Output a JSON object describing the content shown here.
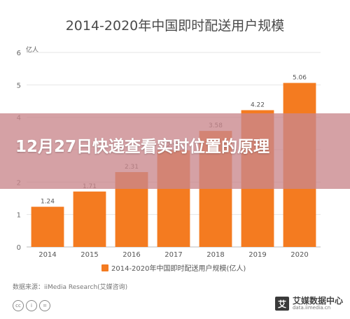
{
  "chart_data": {
    "type": "bar",
    "title": "2014-2020年中国即时配送用户规模",
    "yunit": "亿人",
    "categories": [
      "2014",
      "2015",
      "2016",
      "2017",
      "2018",
      "2019",
      "2020"
    ],
    "values": [
      1.24,
      1.71,
      2.31,
      2.98,
      3.58,
      4.22,
      5.06
    ],
    "value_labels": [
      "1.24",
      "1.71",
      "2.31",
      "2.98",
      "3.58",
      "4.22",
      "5.06"
    ],
    "yticks": [
      "0",
      "1",
      "2",
      "3",
      "4",
      "5",
      "6"
    ],
    "ylim": [
      0,
      6
    ],
    "grid": true,
    "legend": {
      "label": "2014-2020年中国即时配送用户规模(亿人)",
      "placement": "bottom"
    },
    "color": "#f47b20"
  },
  "source": "数据来源：iiMedia Research(艾媒咨询)",
  "license_icons": [
    "cc-icon",
    "by-icon",
    "equal-icon"
  ],
  "brand": {
    "logo": "艾",
    "name": "艾媒数据中心",
    "url": "data.iimedia.cn"
  },
  "overlay": {
    "headline": "12月27日快递查看实时位置的原理"
  }
}
